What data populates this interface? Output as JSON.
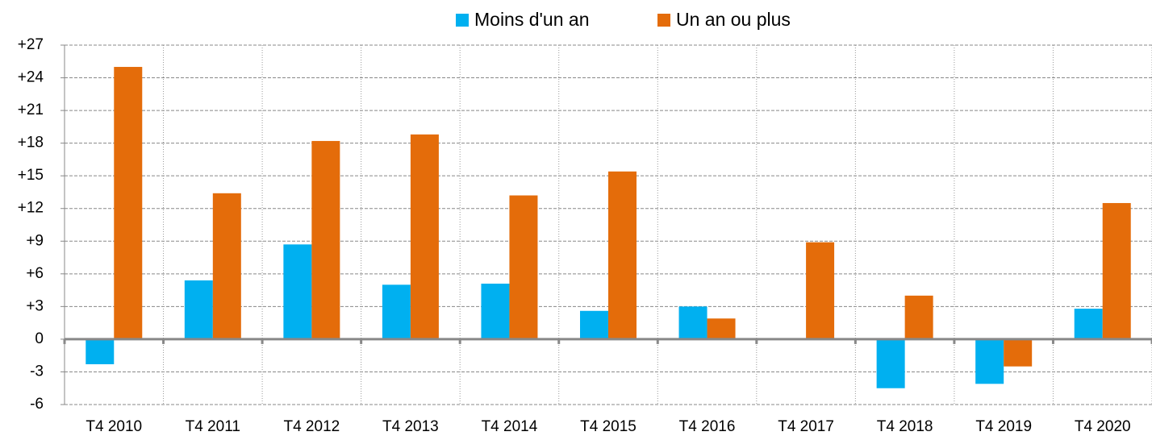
{
  "chart_data": {
    "type": "bar",
    "categories": [
      "T4 2010",
      "T4 2011",
      "T4 2012",
      "T4 2013",
      "T4 2014",
      "T4 2015",
      "T4 2016",
      "T4 2017",
      "T4 2018",
      "T4 2019",
      "T4 2020"
    ],
    "series": [
      {
        "name": "Moins d'un an",
        "color": "#00b0f0",
        "values": [
          -2.3,
          5.4,
          8.7,
          5.0,
          5.1,
          2.6,
          3.0,
          0,
          -4.5,
          -4.1,
          2.8
        ]
      },
      {
        "name": "Un an ou plus",
        "color": "#e46c0a",
        "values": [
          25.0,
          13.4,
          18.2,
          18.8,
          13.2,
          15.4,
          1.9,
          8.9,
          4.0,
          -2.5,
          12.5
        ]
      }
    ],
    "ylim": [
      -6,
      27
    ],
    "yticks": [
      -6,
      -3,
      0,
      {
        "value": 3,
        "label": "+3"
      },
      {
        "value": 6,
        "label": "+6"
      },
      {
        "value": 9,
        "label": "+9"
      },
      {
        "value": 12,
        "label": "+12"
      },
      {
        "value": 15,
        "label": "+15"
      },
      {
        "value": 18,
        "label": "+18"
      },
      {
        "value": 21,
        "label": "+21"
      },
      {
        "value": 24,
        "label": "+24"
      },
      {
        "value": 27,
        "label": "+27"
      }
    ],
    "grid": true,
    "legend": "top"
  }
}
